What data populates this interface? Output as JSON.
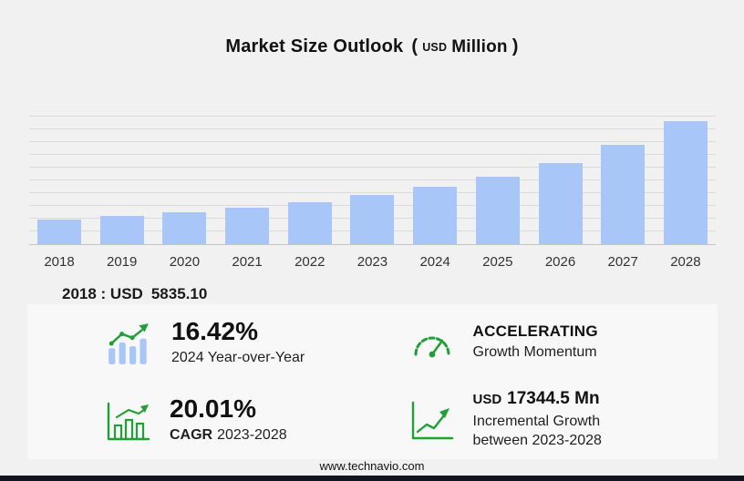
{
  "title": {
    "main": "Market Size Outlook",
    "open_paren": "(",
    "unit_small": "USD",
    "unit": "Million",
    "close_paren": ")"
  },
  "chart_data": {
    "type": "bar",
    "title": "Market Size Outlook (USD Million)",
    "categories": [
      "2018",
      "2019",
      "2020",
      "2021",
      "2022",
      "2023",
      "2024",
      "2025",
      "2026",
      "2027",
      "2028"
    ],
    "values": [
      5835.1,
      6600,
      7450,
      8550,
      9950,
      11653.5,
      13567,
      15900,
      19000,
      23400,
      28998
    ],
    "xlabel": "",
    "ylabel": "",
    "ylim": [
      0,
      30000
    ],
    "grid": true,
    "gridline_count": 10,
    "legend_position": "none",
    "bar_color": "#a8c6f8"
  },
  "base_year_note": {
    "label": "2018 : USD",
    "value": "5835.10"
  },
  "stats": {
    "yoy": {
      "icon": "growth-bars-icon",
      "value": "16.42%",
      "label": "2024 Year-over-Year"
    },
    "momentum": {
      "icon": "speedometer-icon",
      "value": "ACCELERATING",
      "label": "Growth Momentum"
    },
    "cagr": {
      "icon": "cagr-chart-icon",
      "value": "20.01%",
      "label_bold": "CAGR",
      "label": "2023-2028"
    },
    "incremental": {
      "icon": "trend-arrow-icon",
      "value_prefix": "USD",
      "value": "17344.5 Mn",
      "label_line1": "Incremental Growth",
      "label_line2": "between 2023-2028"
    }
  },
  "footer": {
    "url": "www.technavio.com"
  },
  "colors": {
    "background": "#f1f1f1",
    "panel": "#f8f8f8",
    "bar": "#a8c6f8",
    "accent_green": "#21a038",
    "gridline": "#dadada",
    "bottom_bar": "#13131f"
  }
}
